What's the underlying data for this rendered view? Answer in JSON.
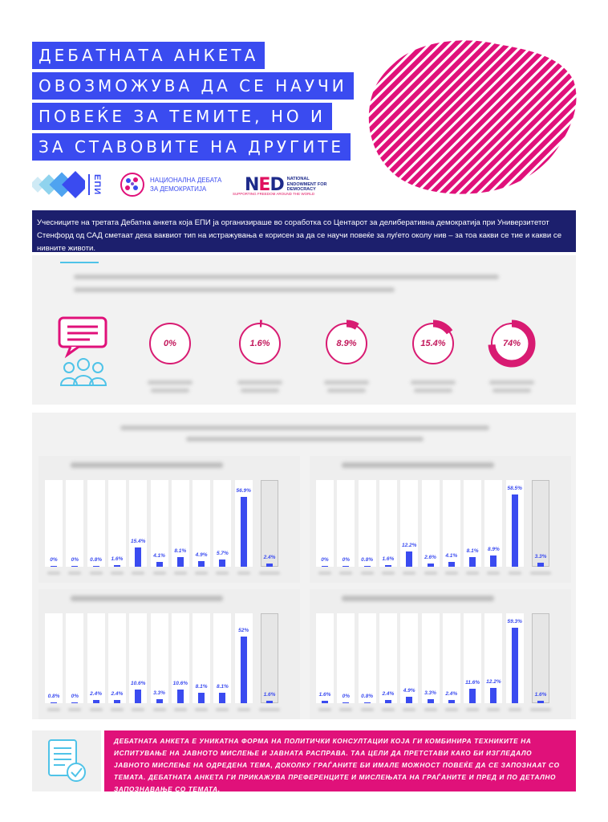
{
  "title": {
    "lines": [
      "ДЕБАТНАТА АНКЕТА",
      "ОВОЗМОЖУВА ДА СЕ НАУЧИ",
      "ПОВЕЌЕ ЗА ТЕМИТЕ, НО И",
      "ЗА СТАВОВИТЕ НА ДРУГИТЕ"
    ]
  },
  "logos": {
    "epi": {
      "text": "ЕПИ",
      "icon": "epi-logo-icon"
    },
    "national_debate": {
      "text": "НАЦИОНАЛНА ДЕБАТА ЗА ДЕМОКРАТИЈА",
      "icon": "globe-logo-icon"
    },
    "ned": {
      "word_n": "N",
      "word_e": "E",
      "word_d": "D",
      "side": "NATIONAL ENDOWMENT FOR DEMOCRACY",
      "tagline": "SUPPORTING FREEDOM AROUND THE WORLD"
    }
  },
  "intro": "Учесниците на третата Дебатна анкета која ЕПИ ја организираше во соработка со Центарот за делиберативна демократија при Универзитетот Стенфорд од САД сметаат дека ваквиот тип на истражувања е корисен за да се научи повеќе за луѓето околу нив – за тоа какви се тие и какви се нивните животи.",
  "stats": {
    "icon": "chat-people-icon",
    "donuts": [
      {
        "value": "0%",
        "fraction": 0.0
      },
      {
        "value": "1.6%",
        "fraction": 0.016
      },
      {
        "value": "8.9%",
        "fraction": 0.089
      },
      {
        "value": "15.4%",
        "fraction": 0.154
      },
      {
        "value": "74%",
        "fraction": 0.74
      }
    ]
  },
  "charts": [
    {
      "values": [
        "0%",
        "0%",
        "0.8%",
        "1.6%",
        "15.4%",
        "4.1%",
        "8.1%",
        "4.9%",
        "5.7%",
        "56.9%"
      ],
      "nums": [
        0,
        0,
        0.8,
        1.6,
        15.4,
        4.1,
        8.1,
        4.9,
        5.7,
        56.9
      ],
      "last": "2.4%",
      "last_num": 2.4
    },
    {
      "values": [
        "0%",
        "0%",
        "0.8%",
        "1.6%",
        "12.2%",
        "2.6%",
        "4.1%",
        "8.1%",
        "8.9%",
        "58.5%"
      ],
      "nums": [
        0,
        0,
        0.8,
        1.6,
        12.2,
        2.6,
        4.1,
        8.1,
        8.9,
        58.5
      ],
      "last": "3.3%",
      "last_num": 3.3
    },
    {
      "values": [
        "0.8%",
        "0%",
        "2.4%",
        "2.4%",
        "10.6%",
        "3.3%",
        "10.6%",
        "8.1%",
        "8.1%",
        "52%"
      ],
      "nums": [
        0.8,
        0,
        2.4,
        2.4,
        10.6,
        3.3,
        10.6,
        8.1,
        8.1,
        52
      ],
      "last": "1.6%",
      "last_num": 1.6
    },
    {
      "values": [
        "1.6%",
        "0%",
        "0.8%",
        "2.4%",
        "4.9%",
        "3.3%",
        "2.4%",
        "11.6%",
        "12.2%",
        "59.3%"
      ],
      "nums": [
        1.6,
        0,
        0.8,
        2.4,
        4.9,
        3.3,
        2.4,
        11.6,
        12.2,
        59.3
      ],
      "last": "1.6%",
      "last_num": 1.6
    }
  ],
  "conclusion": {
    "icon": "document-check-icon",
    "text": "ДЕБАТНАТА АНКЕТА Е УНИКАТНА ФОРМА НА ПОЛИТИЧКИ КОНСУЛТАЦИИ КОЈА ГИ КОМБИНИРА ТЕХНИКИТЕ НА ИСПИТУВАЊЕ НА ЈАВНОТО МИСЛЕЊЕ И ЈАВНАТА РАСПРАВА. ТАА ЦЕЛИ ДА ПРЕТСТАВИ КАКО БИ ИЗГЛЕДАЛО ЈАВНОТО МИСЛЕЊЕ НА ОДРЕДЕНА ТЕМА, ДОКОЛКУ ГРАЃАНИТЕ БИ ИМАЛЕ МОЖНОСТ ПОВЕЌЕ ДА СЕ ЗАПОЗНААТ СО ТЕМАТА. ДЕБАТНАТА АНКЕТА ГИ ПРИКАЖУВА ПРЕФЕРЕНЦИТЕ И МИСЛЕЊАТА НА ГРАЃАНИТЕ И ПРЕД И ПО ДЕТАЛНО ЗАПОЗНАВАЊЕ СО ТЕМАТА."
  },
  "colors": {
    "accent_blue": "#3a4bf0",
    "navy": "#1c1f6d",
    "magenta": "#e0117a",
    "donut": "#d81b72"
  }
}
